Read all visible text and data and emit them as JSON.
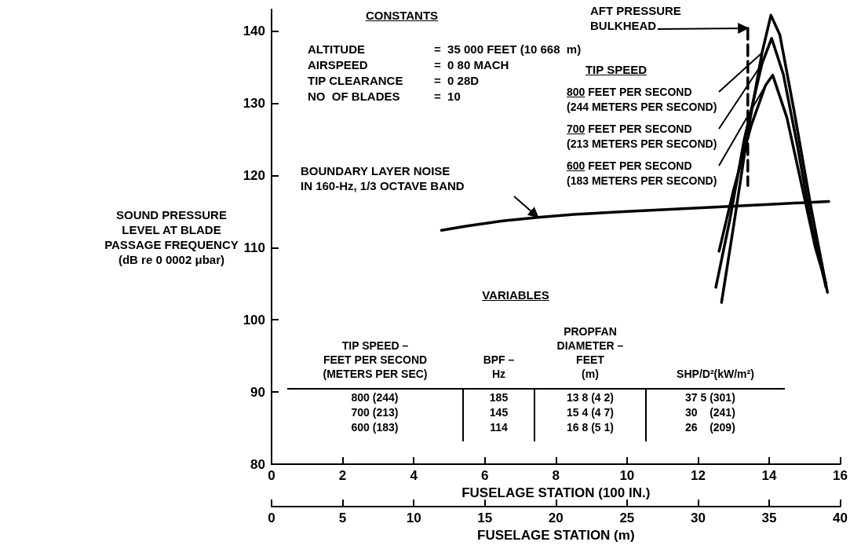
{
  "chart_data": {
    "type": "line",
    "ylabel": "SOUND PRESSURE\nLEVEL AT BLADE\nPASSAGE FREQUENCY\n(dB re 0 0002 μbar)",
    "xlabel": "FUSELAGE STATION (100 IN.)",
    "x2label": "FUSELAGE STATION (m)",
    "xlim": [
      0,
      16
    ],
    "xticks": [
      0,
      2,
      4,
      6,
      8,
      10,
      12,
      14,
      16
    ],
    "x2lim": [
      0,
      40
    ],
    "x2ticks": [
      0,
      5,
      10,
      15,
      20,
      25,
      30,
      35,
      40
    ],
    "ylim": [
      80,
      143
    ],
    "yticks": [
      80,
      90,
      100,
      110,
      120,
      130,
      140
    ],
    "grid": false,
    "legend": false,
    "marker": "none",
    "line_style": "solid",
    "series": [
      {
        "name": "BOUNDARY LAYER NOISE\nIN 160-Hz, 1/3 OCTAVE BAND",
        "color": "#000000",
        "x": [
          4.78,
          5.5,
          6.5,
          7.5,
          8.5,
          10,
          12,
          14,
          15.68
        ],
        "values": [
          112.4,
          113.0,
          113.7,
          114.2,
          114.6,
          115.0,
          115.5,
          116.0,
          116.4
        ]
      },
      {
        "name": "AFT PRESSURE\nBULKHEAD",
        "color": "#000000",
        "line_style": "dashed",
        "x": [
          13.4,
          13.4
        ],
        "values": [
          140.4,
          118.6
        ]
      },
      {
        "name": "800 FEET PER SECOND\n(244 METERS PER SECOND)",
        "color": "#000000",
        "x": [
          12.66,
          13.0,
          13.4,
          13.8,
          14.05,
          14.3,
          14.7,
          15.2,
          15.64
        ],
        "values": [
          102.4,
          113,
          126,
          137,
          142.2,
          139.5,
          129,
          115,
          103.8
        ]
      },
      {
        "name": "700 FEET PER SECOND\n(213 METERS PER SECOND)",
        "color": "#000000",
        "x": [
          12.5,
          12.9,
          13.3,
          13.8,
          14.07,
          14.4,
          14.8,
          15.2,
          15.6
        ],
        "values": [
          104.5,
          114,
          125,
          135.5,
          139,
          134,
          124,
          113,
          104.5
        ]
      },
      {
        "name": "600 FEET PER SECOND\n(183 METERS PER SECOND)",
        "color": "#000000",
        "x": [
          12.59,
          13.0,
          13.5,
          13.9,
          14.1,
          14.5,
          14.9,
          15.3,
          15.6
        ],
        "values": [
          109.5,
          118,
          127,
          132.5,
          133.9,
          128,
          119,
          110,
          105
        ]
      }
    ],
    "annotations": [
      "CONSTANTS",
      "ALTITUDE\nAIRSPEED\nTIP CLEARANCE\nNO  OF BLADES",
      "=  35 000 FEET (10 668  m)\n=  0 80 MACH\n=  0 28D\n=  10",
      "TIP SPEED",
      "VARIABLES",
      "TIP SPEED –\nFEET PER SECOND\n(METERS PER SEC)",
      "BPF –\nHz",
      "PROPFAN\nDIAMETER –\nFEET\n(m)",
      "SHP/D²(kW/m²)",
      "800 (244)\n700 (213)\n600 (183)",
      "185\n145\n114",
      "13 8 (4 2)\n15 4 (4 7)\n16 8 (5 1)",
      "37 5 (301)\n30    (241)\n26    (209)"
    ]
  }
}
